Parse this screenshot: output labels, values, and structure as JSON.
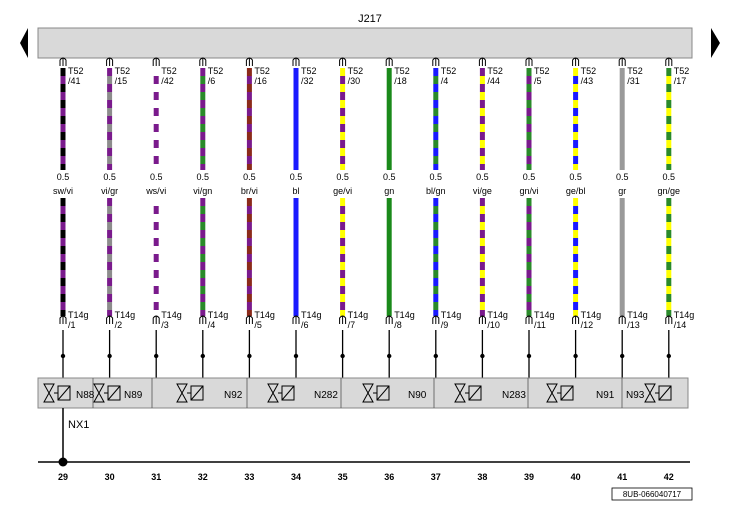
{
  "control_unit": {
    "label": "J217"
  },
  "wires": [
    {
      "pin_top": "T52\n/41",
      "size": "0.5",
      "color_code": "sw/vi",
      "colors": [
        "#000000",
        "#7a1a8c"
      ],
      "pin_bottom": "T14g\n/1",
      "bottom_number": "29"
    },
    {
      "pin_top": "T52\n/15",
      "size": "0.5",
      "color_code": "vi/gr",
      "colors": [
        "#7a1a8c",
        "#8c8c8c"
      ],
      "pin_bottom": "T14g\n/2",
      "bottom_number": "30"
    },
    {
      "pin_top": "T52\n/42",
      "size": "0.5",
      "color_code": "ws/vi",
      "colors": [
        "#ffffff",
        "#7a1a8c"
      ],
      "pin_bottom": "T14g\n/3",
      "bottom_number": "31"
    },
    {
      "pin_top": "T52\n/6",
      "size": "0.5",
      "color_code": "vi/gn",
      "colors": [
        "#7a1a8c",
        "#2a8a2a"
      ],
      "pin_bottom": "T14g\n/4",
      "bottom_number": "32"
    },
    {
      "pin_top": "T52\n/16",
      "size": "0.5",
      "color_code": "br/vi",
      "colors": [
        "#8b2a1a",
        "#7a1a8c"
      ],
      "pin_bottom": "T14g\n/5",
      "bottom_number": "33"
    },
    {
      "pin_top": "T52\n/32",
      "size": "0.5",
      "color_code": "bl",
      "colors": [
        "#1a1aff"
      ],
      "pin_bottom": "T14g\n/6",
      "bottom_number": "34"
    },
    {
      "pin_top": "T52\n/30",
      "size": "0.5",
      "color_code": "ge/vi",
      "colors": [
        "#ffff00",
        "#7a1a8c"
      ],
      "pin_bottom": "T14g\n/7",
      "bottom_number": "35"
    },
    {
      "pin_top": "T52\n/18",
      "size": "0.5",
      "color_code": "gn",
      "colors": [
        "#1a8a1a"
      ],
      "pin_bottom": "T14g\n/8",
      "bottom_number": "36"
    },
    {
      "pin_top": "T52\n/4",
      "size": "0.5",
      "color_code": "bl/gn",
      "colors": [
        "#1a1aff",
        "#2a8a2a"
      ],
      "pin_bottom": "T14g\n/9",
      "bottom_number": "37"
    },
    {
      "pin_top": "T52\n/44",
      "size": "0.5",
      "color_code": "vi/ge",
      "colors": [
        "#7a1a8c",
        "#ffff00"
      ],
      "pin_bottom": "T14g\n/10",
      "bottom_number": "38"
    },
    {
      "pin_top": "T52\n/5",
      "size": "0.5",
      "color_code": "gn/vi",
      "colors": [
        "#2a8a2a",
        "#7a1a8c"
      ],
      "pin_bottom": "T14g\n/11",
      "bottom_number": "39"
    },
    {
      "pin_top": "T52\n/43",
      "size": "0.5",
      "color_code": "ge/bl",
      "colors": [
        "#ffff00",
        "#1a1aff"
      ],
      "pin_bottom": "T14g\n/12",
      "bottom_number": "40"
    },
    {
      "pin_top": "T52\n/31",
      "size": "0.5",
      "color_code": "gr",
      "colors": [
        "#9a9a9a"
      ],
      "pin_bottom": "T14g\n/13",
      "bottom_number": "41"
    },
    {
      "pin_top": "T52\n/17",
      "size": "0.5",
      "color_code": "gn/ge",
      "colors": [
        "#2a8a2a",
        "#ffff00"
      ],
      "pin_bottom": "T14g\n/14",
      "bottom_number": "42"
    }
  ],
  "valves": [
    "N88",
    "N89",
    "N92",
    "N282",
    "N90",
    "N283",
    "N91",
    "N93"
  ],
  "connector": {
    "label": "NX1"
  },
  "figure_id": "8UB-066040717"
}
